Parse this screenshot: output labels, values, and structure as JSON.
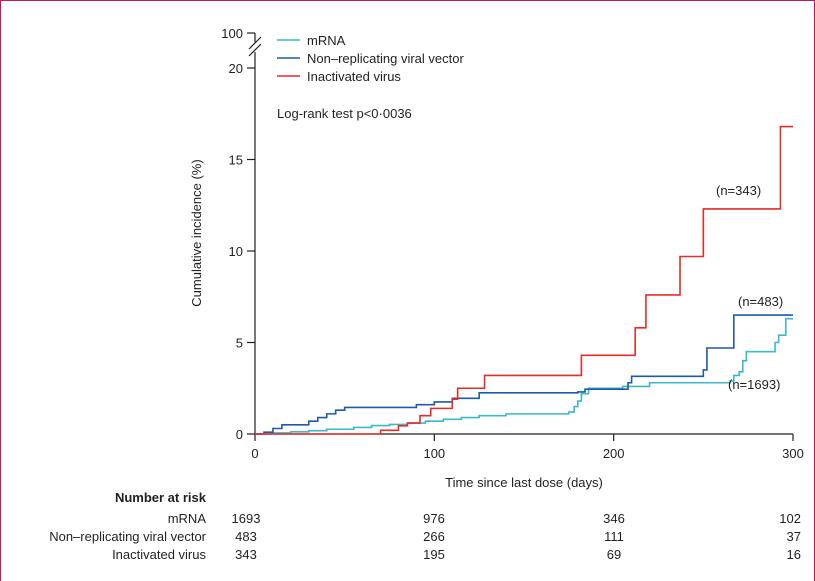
{
  "colors": {
    "mrna": "#3bb8c9",
    "vector": "#1f5aa6",
    "inactivated": "#e52d27",
    "frame": "#c2185b"
  },
  "chart_data": {
    "type": "line",
    "step": true,
    "xlabel": "Time since last dose (days)",
    "ylabel": "Cumulative incidence (%)",
    "xlim": [
      0,
      300
    ],
    "ylim": [
      0,
      20
    ],
    "ybreak_label": "100",
    "xticks": [
      "0",
      "100",
      "200",
      "300"
    ],
    "yticks": [
      "0",
      "5",
      "10",
      "15",
      "20"
    ],
    "legend_position": "top-left",
    "annotation": "Log-rank test p<0·0036",
    "series": [
      {
        "name": "mRNA",
        "label": "(n=1693)",
        "color": "#3bb8c9",
        "points": [
          [
            0,
            0
          ],
          [
            10,
            0.06
          ],
          [
            20,
            0.12
          ],
          [
            30,
            0.18
          ],
          [
            40,
            0.26
          ],
          [
            55,
            0.36
          ],
          [
            65,
            0.46
          ],
          [
            75,
            0.52
          ],
          [
            85,
            0.6
          ],
          [
            95,
            0.7
          ],
          [
            105,
            0.8
          ],
          [
            115,
            0.9
          ],
          [
            125,
            1.0
          ],
          [
            140,
            1.1
          ],
          [
            175,
            1.2
          ],
          [
            178,
            1.5
          ],
          [
            180,
            1.8
          ],
          [
            182,
            2.2
          ],
          [
            186,
            2.5
          ],
          [
            205,
            2.6
          ],
          [
            220,
            2.8
          ],
          [
            265,
            2.9
          ],
          [
            267,
            3.2
          ],
          [
            270,
            3.4
          ],
          [
            272,
            4.0
          ],
          [
            274,
            4.5
          ],
          [
            290,
            5.0
          ],
          [
            292,
            5.4
          ],
          [
            296,
            6.3
          ],
          [
            300,
            6.3
          ]
        ]
      },
      {
        "name": "Non–replicating viral vector",
        "label": "(n=483)",
        "color": "#1f5aa6",
        "points": [
          [
            0,
            0
          ],
          [
            5,
            0.1
          ],
          [
            10,
            0.3
          ],
          [
            15,
            0.5
          ],
          [
            30,
            0.7
          ],
          [
            35,
            0.9
          ],
          [
            40,
            1.1
          ],
          [
            45,
            1.3
          ],
          [
            50,
            1.45
          ],
          [
            90,
            1.6
          ],
          [
            100,
            1.75
          ],
          [
            110,
            1.95
          ],
          [
            125,
            2.25
          ],
          [
            180,
            2.3
          ],
          [
            184,
            2.45
          ],
          [
            208,
            2.8
          ],
          [
            210,
            3.15
          ],
          [
            250,
            3.5
          ],
          [
            252,
            4.7
          ],
          [
            265,
            4.7
          ],
          [
            267,
            6.5
          ],
          [
            300,
            6.5
          ]
        ]
      },
      {
        "name": "Inactivated virus",
        "label": "(n=343)",
        "color": "#e52d27",
        "points": [
          [
            0,
            0
          ],
          [
            70,
            0.2
          ],
          [
            80,
            0.45
          ],
          [
            85,
            0.6
          ],
          [
            92,
            1.0
          ],
          [
            98,
            1.4
          ],
          [
            110,
            1.9
          ],
          [
            113,
            2.5
          ],
          [
            128,
            3.2
          ],
          [
            182,
            4.3
          ],
          [
            212,
            5.8
          ],
          [
            218,
            7.6
          ],
          [
            237,
            9.7
          ],
          [
            250,
            12.3
          ],
          [
            293,
            16.8
          ],
          [
            300,
            16.8
          ]
        ]
      }
    ]
  },
  "risk_table": {
    "title": "Number at risk",
    "rows": [
      {
        "name": "mRNA",
        "values": [
          "1693",
          "976",
          "346",
          "102"
        ]
      },
      {
        "name": "Non–replicating viral vector",
        "values": [
          "483",
          "266",
          "111",
          "37"
        ]
      },
      {
        "name": "Inactivated virus",
        "values": [
          "343",
          "195",
          "69",
          "16"
        ]
      }
    ]
  }
}
